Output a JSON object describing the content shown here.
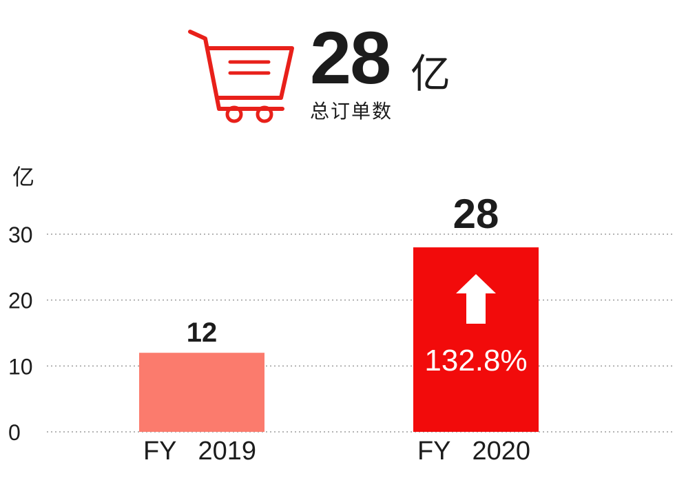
{
  "header": {
    "number": "28",
    "unit": "亿",
    "caption": "总订单数"
  },
  "icons": {
    "cart": "shopping-cart-icon",
    "growth": "up-arrow-icon"
  },
  "colors": {
    "accent": "#e8201a",
    "bar_2019": "#fb7b6d",
    "bar_2020": "#f20b0b",
    "text": "#1c1c1c"
  },
  "chart_data": {
    "type": "bar",
    "ylabel": "亿",
    "ylim": [
      0,
      30
    ],
    "yticks": [
      0,
      10,
      20,
      30
    ],
    "grid": true,
    "categories": [
      "FY   2019",
      "FY   2020"
    ],
    "values": [
      12,
      28
    ],
    "data_labels": [
      "12",
      "28"
    ],
    "annotation": {
      "category": "FY   2020",
      "text": "132.8%",
      "icon": "up-arrow-icon"
    }
  }
}
